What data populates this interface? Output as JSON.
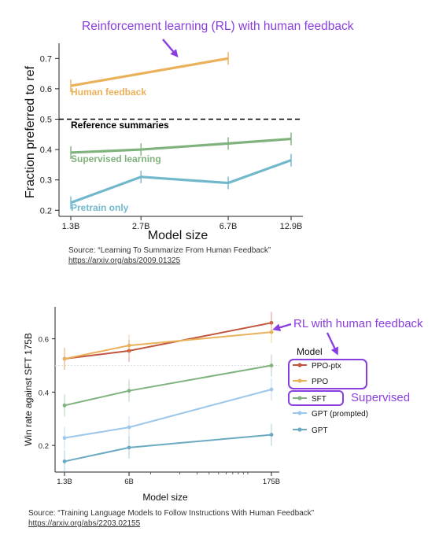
{
  "chart_data": [
    {
      "type": "line",
      "xlabel": "Model size",
      "ylabel": "Fraction preferred to ref",
      "categories": [
        "1.3B",
        "2.7B",
        "6.7B",
        "12.9B"
      ],
      "x_scale": "log",
      "ylim": [
        0.18,
        0.75
      ],
      "yticks": [
        "0.2",
        "0.3",
        "0.4",
        "0.5",
        "0.6",
        "0.7"
      ],
      "reference": {
        "value": 0.5,
        "label": "Reference summaries",
        "style": "dashed",
        "color": "#000000"
      },
      "series": [
        {
          "name": "Human feedback",
          "color": "#eab15a",
          "x": [
            "1.3B",
            "6.7B"
          ],
          "values": [
            0.61,
            0.7
          ]
        },
        {
          "name": "Supervised learning",
          "color": "#7fb27d",
          "x": [
            "1.3B",
            "2.7B",
            "6.7B",
            "12.9B"
          ],
          "values": [
            0.39,
            0.4,
            0.42,
            0.435
          ]
        },
        {
          "name": "Pretrain only",
          "color": "#72b8cc",
          "x": [
            "1.3B",
            "2.7B",
            "6.7B",
            "12.9B"
          ],
          "values": [
            0.225,
            0.31,
            0.29,
            0.365
          ]
        }
      ],
      "annotation": {
        "text": "Reinforcement learning (RL) with human feedback",
        "color": "#8a3ee0"
      },
      "source": {
        "text": "Source: “Learning To Summarize From Human Feedback”",
        "url": "https://arxiv.org/abs/2009.01325"
      }
    },
    {
      "type": "line",
      "xlabel": "Model size",
      "ylabel": "Win rate against SFT 175B",
      "categories": [
        "1.3B",
        "6B",
        "175B"
      ],
      "x_scale": "log",
      "ylim": [
        0.1,
        0.72
      ],
      "yticks": [
        "0.2",
        "0.4",
        "0.6"
      ],
      "reference": {
        "value": 0.5,
        "style": "dotted",
        "color": "#dddddd"
      },
      "legend": {
        "title": "Model",
        "position": "right"
      },
      "series": [
        {
          "name": "PPO-ptx",
          "color": "#c1553d",
          "values": [
            0.525,
            0.555,
            0.66
          ]
        },
        {
          "name": "PPO",
          "color": "#eab15a",
          "values": [
            0.525,
            0.575,
            0.625
          ]
        },
        {
          "name": "SFT",
          "color": "#7fb27d",
          "values": [
            0.35,
            0.405,
            0.5
          ]
        },
        {
          "name": "GPT (prompted)",
          "color": "#9cc7ea",
          "values": [
            0.228,
            0.268,
            0.41
          ]
        },
        {
          "name": "GPT",
          "color": "#6aabc3",
          "values": [
            0.14,
            0.192,
            0.24
          ]
        }
      ],
      "annotations": [
        {
          "text": "RL with human feedback",
          "color": "#8a3ee0"
        },
        {
          "text": "Supervised",
          "color": "#8a3ee0"
        }
      ],
      "source": {
        "text": "Source: “Training Language Models to Follow Instructions With Human Feedback”",
        "url": "https://arxiv.org/abs/2203.02155"
      }
    }
  ]
}
